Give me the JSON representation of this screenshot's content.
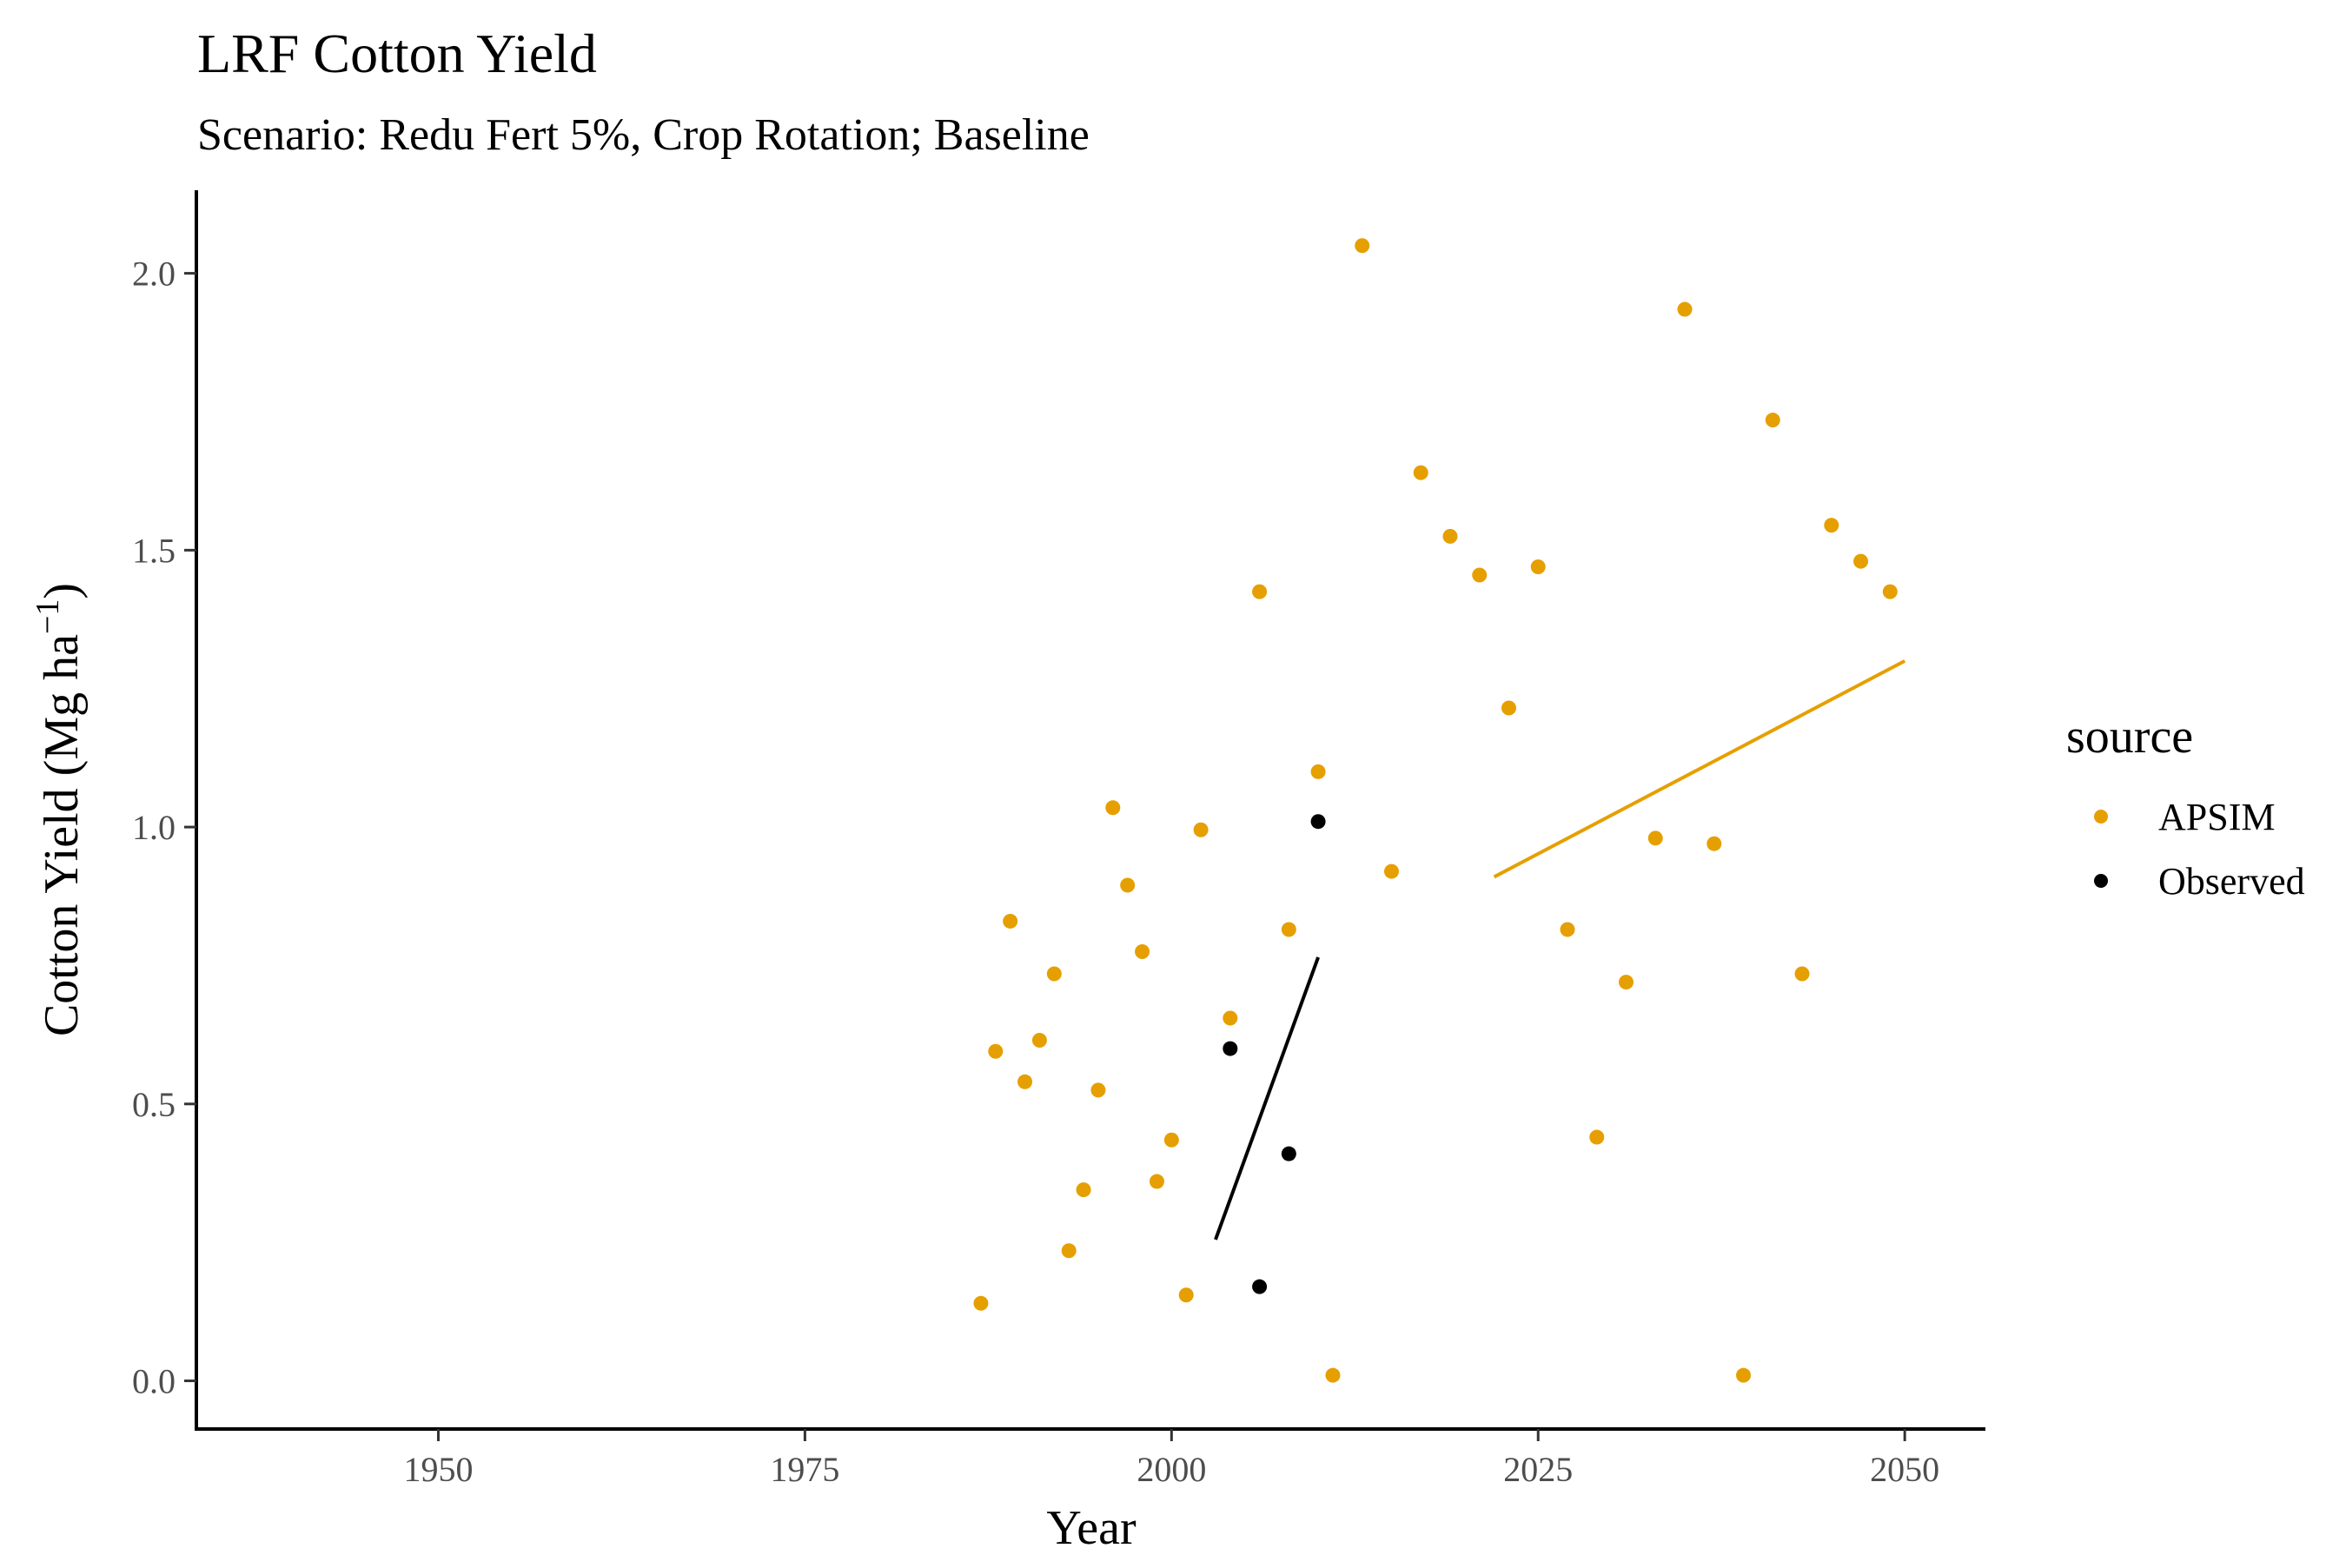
{
  "chart_data": {
    "type": "scatter",
    "title": "LRF Cotton Yield",
    "subtitle": "Scenario: Redu Fert 5%, Crop Rotation; Baseline",
    "xlabel": "Year",
    "ylabel_main": "Cotton Yield (Mg ha",
    "ylabel_sup": "−1",
    "ylabel_close": ")",
    "xlim": [
      1933.5,
      2055.5
    ],
    "ylim": [
      -0.087,
      2.15
    ],
    "x_ticks": [
      1950,
      1975,
      2000,
      2025,
      2050
    ],
    "x_tick_labels": [
      "1950",
      "1975",
      "2000",
      "2025",
      "2050"
    ],
    "y_ticks": [
      0.0,
      0.5,
      1.0,
      1.5,
      2.0
    ],
    "y_tick_labels": [
      "0.0",
      "0.5",
      "1.0",
      "1.5",
      "2.0"
    ],
    "grid": false,
    "legend": {
      "title": "source",
      "position": "right",
      "entries": [
        "APSIM",
        "Observed"
      ]
    },
    "series": [
      {
        "name": "APSIM",
        "color": "#E69F00",
        "points": [
          [
            1987,
            0.14
          ],
          [
            1988,
            0.595
          ],
          [
            1989,
            0.83
          ],
          [
            1990,
            0.54
          ],
          [
            1991,
            0.615
          ],
          [
            1992,
            0.735
          ],
          [
            1993,
            0.235
          ],
          [
            1994,
            0.345
          ],
          [
            1995,
            0.525
          ],
          [
            1996,
            1.035
          ],
          [
            1997,
            0.895
          ],
          [
            1998,
            0.775
          ],
          [
            1999,
            0.36
          ],
          [
            2000,
            0.435
          ],
          [
            2001,
            0.155
          ],
          [
            2002,
            0.995
          ],
          [
            2004,
            0.655
          ],
          [
            2006,
            1.425
          ],
          [
            2008,
            0.815
          ],
          [
            2010,
            1.1
          ],
          [
            2011,
            0.01
          ],
          [
            2013,
            2.05
          ],
          [
            2015,
            0.92
          ],
          [
            2017,
            1.64
          ],
          [
            2019,
            1.525
          ],
          [
            2021,
            1.455
          ],
          [
            2023,
            1.215
          ],
          [
            2025,
            1.47
          ],
          [
            2027,
            0.815
          ],
          [
            2029,
            0.44
          ],
          [
            2031,
            0.72
          ],
          [
            2033,
            0.98
          ],
          [
            2035,
            1.935
          ],
          [
            2037,
            0.97
          ],
          [
            2039,
            0.01
          ],
          [
            2041,
            1.735
          ],
          [
            2043,
            0.735
          ],
          [
            2045,
            1.545
          ],
          [
            2047,
            1.48
          ],
          [
            2049,
            1.425
          ]
        ],
        "trend": [
          [
            2022,
            0.91
          ],
          [
            2050,
            1.3
          ]
        ]
      },
      {
        "name": "Observed",
        "color": "#000000",
        "points": [
          [
            2004,
            0.6
          ],
          [
            2006,
            0.17
          ],
          [
            2008,
            0.41
          ],
          [
            2010,
            1.01
          ]
        ],
        "trend": [
          [
            2003,
            0.255
          ],
          [
            2010,
            0.765
          ]
        ]
      }
    ]
  }
}
